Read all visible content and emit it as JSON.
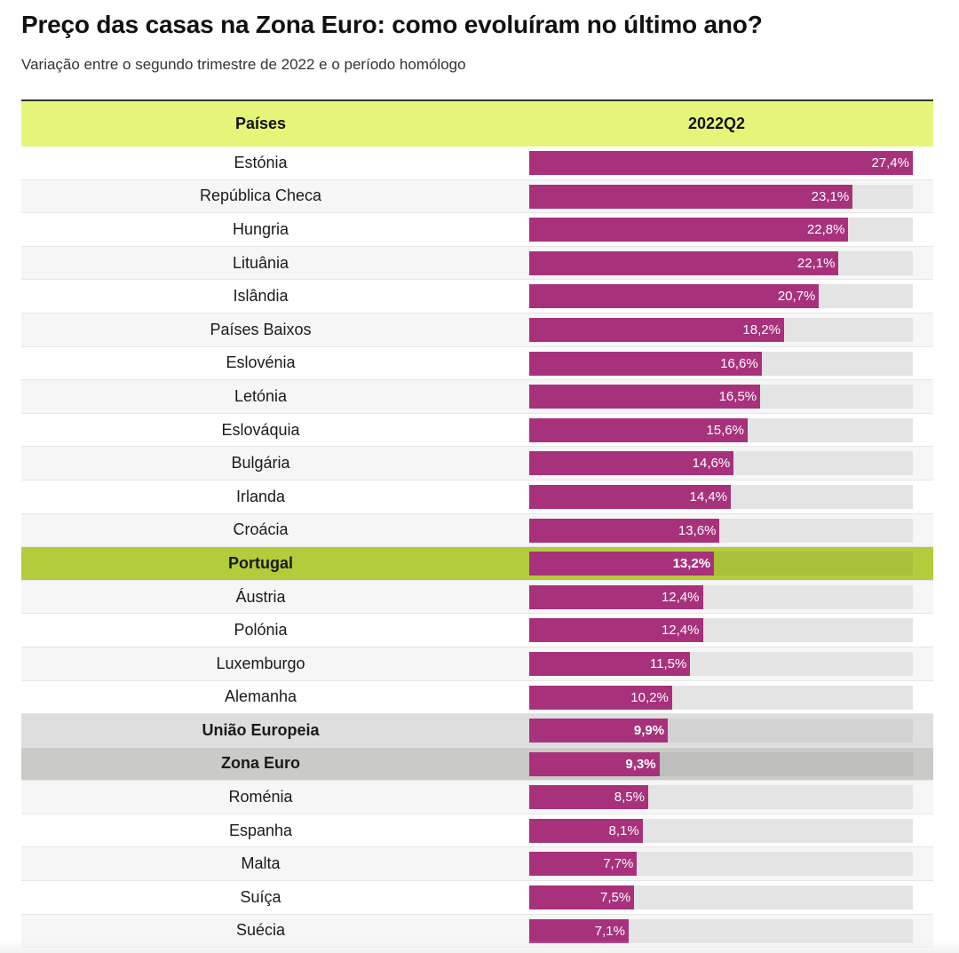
{
  "header": {
    "title": "Preço das casas na Zona Euro: como evoluíram no último ano?",
    "subtitle": "Variação entre o segundo trimestre de 2022 e o período homólogo"
  },
  "table": {
    "col_country": "Países",
    "col_value": "2022Q2"
  },
  "colors": {
    "bar": "#a8317c",
    "header_bg": "#e6f57a",
    "portugal_bg": "#b3cc3c",
    "ue_bg": "#dedede",
    "zona_euro_bg": "#cacac6"
  },
  "chart_data": {
    "type": "bar",
    "orientation": "horizontal",
    "title": "Preço das casas na Zona Euro: como evoluíram no último ano?",
    "subtitle": "Variação entre o segundo trimestre de 2022 e o período homólogo",
    "xlim": [
      0,
      27.4
    ],
    "rows": [
      {
        "country": "Estónia",
        "value": 27.4,
        "label": "27,4%"
      },
      {
        "country": "República Checa",
        "value": 23.1,
        "label": "23,1%"
      },
      {
        "country": "Hungria",
        "value": 22.8,
        "label": "22,8%"
      },
      {
        "country": "Lituânia",
        "value": 22.1,
        "label": "22,1%"
      },
      {
        "country": "Islândia",
        "value": 20.7,
        "label": "20,7%"
      },
      {
        "country": "Países Baixos",
        "value": 18.2,
        "label": "18,2%"
      },
      {
        "country": "Eslovénia",
        "value": 16.6,
        "label": "16,6%"
      },
      {
        "country": "Letónia",
        "value": 16.5,
        "label": "16,5%"
      },
      {
        "country": "Eslováquia",
        "value": 15.6,
        "label": "15,6%"
      },
      {
        "country": "Bulgária",
        "value": 14.6,
        "label": "14,6%"
      },
      {
        "country": "Irlanda",
        "value": 14.4,
        "label": "14,4%"
      },
      {
        "country": "Croácia",
        "value": 13.6,
        "label": "13,6%"
      },
      {
        "country": "Portugal",
        "value": 13.2,
        "label": "13,2%",
        "highlight": "pt"
      },
      {
        "country": "Áustria",
        "value": 12.4,
        "label": "12,4%"
      },
      {
        "country": "Polónia",
        "value": 12.4,
        "label": "12,4%"
      },
      {
        "country": "Luxemburgo",
        "value": 11.5,
        "label": "11,5%"
      },
      {
        "country": "Alemanha",
        "value": 10.2,
        "label": "10,2%"
      },
      {
        "country": "União Europeia",
        "value": 9.9,
        "label": "9,9%",
        "highlight": "ue"
      },
      {
        "country": "Zona Euro",
        "value": 9.3,
        "label": "9,3%",
        "highlight": "ze"
      },
      {
        "country": "Roménia",
        "value": 8.5,
        "label": "8,5%"
      },
      {
        "country": "Espanha",
        "value": 8.1,
        "label": "8,1%"
      },
      {
        "country": "Malta",
        "value": 7.7,
        "label": "7,7%"
      },
      {
        "country": "Suíça",
        "value": 7.5,
        "label": "7,5%"
      },
      {
        "country": "Suécia",
        "value": 7.1,
        "label": "7,1%"
      }
    ]
  }
}
